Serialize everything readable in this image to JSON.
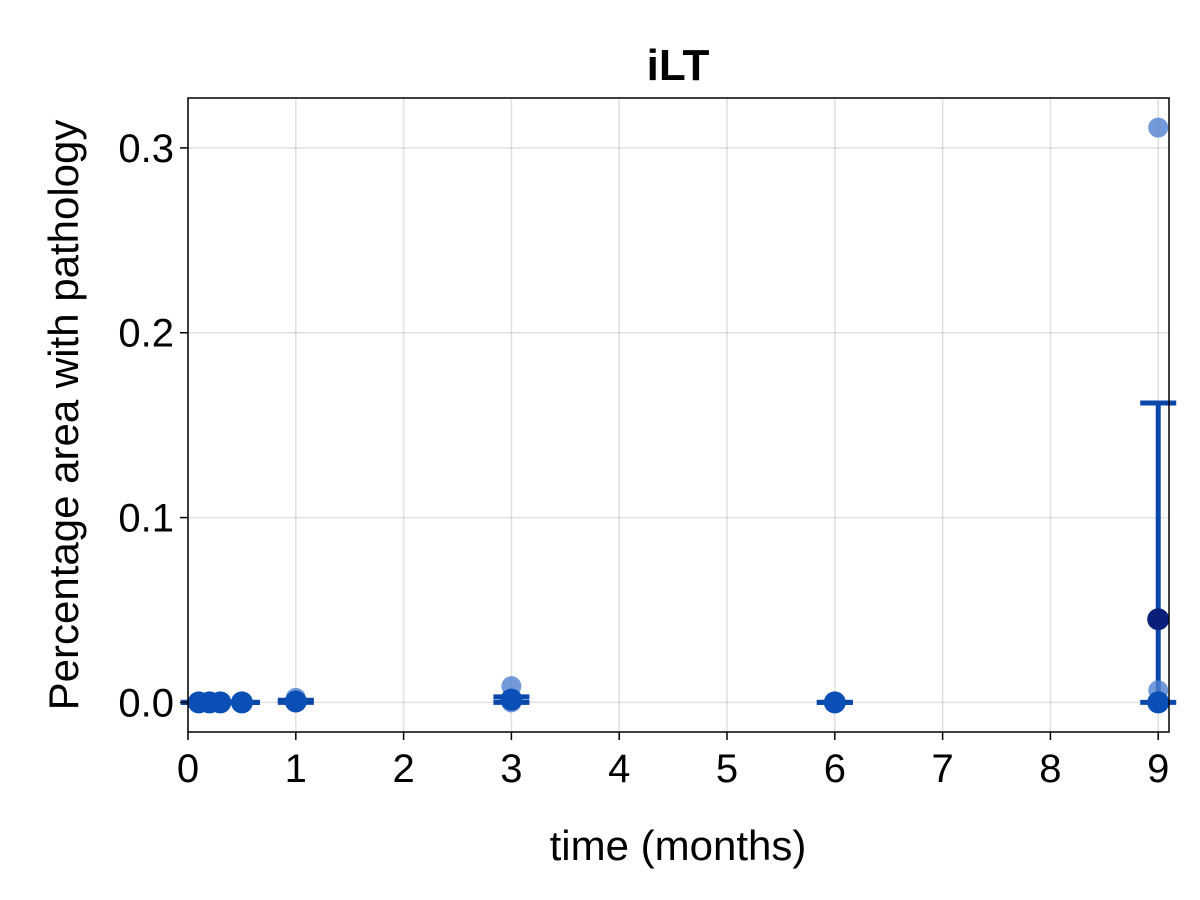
{
  "chart_data": {
    "type": "scatter",
    "title": "iLT",
    "xlabel": "time (months)",
    "ylabel": "Percentage area with pathology",
    "xlim": [
      0,
      9.1
    ],
    "ylim": [
      -0.016,
      0.327
    ],
    "xticks": [
      0,
      1,
      2,
      3,
      4,
      5,
      6,
      7,
      8,
      9
    ],
    "xtick_labels": [
      "0",
      "1",
      "2",
      "3",
      "4",
      "5",
      "6",
      "7",
      "8",
      "9"
    ],
    "yticks": [
      0.0,
      0.1,
      0.2,
      0.3
    ],
    "ytick_labels": [
      "0.0",
      "0.1",
      "0.2",
      "0.3"
    ],
    "grid": true,
    "colors": {
      "individual": "#4f7fcf",
      "mean_marker": "#0a4fb5",
      "mean_highlight": "#0a1f7a",
      "errorbar": "#0a47a8"
    },
    "series": [
      {
        "role": "individual",
        "points": [
          {
            "x": 0.1,
            "y": 0.0
          },
          {
            "x": 0.2,
            "y": 0.0
          },
          {
            "x": 0.3,
            "y": 0.0
          },
          {
            "x": 0.5,
            "y": 0.0
          },
          {
            "x": 1.0,
            "y": 0.0
          },
          {
            "x": 1.0,
            "y": 0.0025
          },
          {
            "x": 3.0,
            "y": 0.0
          },
          {
            "x": 3.0,
            "y": 0.0088
          },
          {
            "x": 6.0,
            "y": 0.0
          },
          {
            "x": 9.0,
            "y": 0.0
          },
          {
            "x": 9.0,
            "y": 0.0065
          },
          {
            "x": 9.0,
            "y": 0.311
          }
        ]
      },
      {
        "role": "mean",
        "points": [
          {
            "x": 0.1,
            "y": 0.0,
            "lower": 0.0,
            "upper": 0.0
          },
          {
            "x": 0.2,
            "y": 0.0,
            "lower": 0.0,
            "upper": 0.0
          },
          {
            "x": 0.3,
            "y": 0.0,
            "lower": 0.0,
            "upper": 0.0
          },
          {
            "x": 0.5,
            "y": 0.0,
            "lower": 0.0,
            "upper": 0.0
          },
          {
            "x": 1.0,
            "y": 0.0005,
            "lower": 0.0,
            "upper": 0.0012
          },
          {
            "x": 3.0,
            "y": 0.0015,
            "lower": 0.0,
            "upper": 0.003
          },
          {
            "x": 6.0,
            "y": 0.0,
            "lower": 0.0,
            "upper": 0.0
          },
          {
            "x": 9.0,
            "y": 0.0,
            "lower": 0.0,
            "upper": 0.162
          },
          {
            "x": 9.0,
            "y": 0.045,
            "lower": 0.045,
            "upper": 0.045,
            "highlight": true
          }
        ]
      }
    ]
  }
}
